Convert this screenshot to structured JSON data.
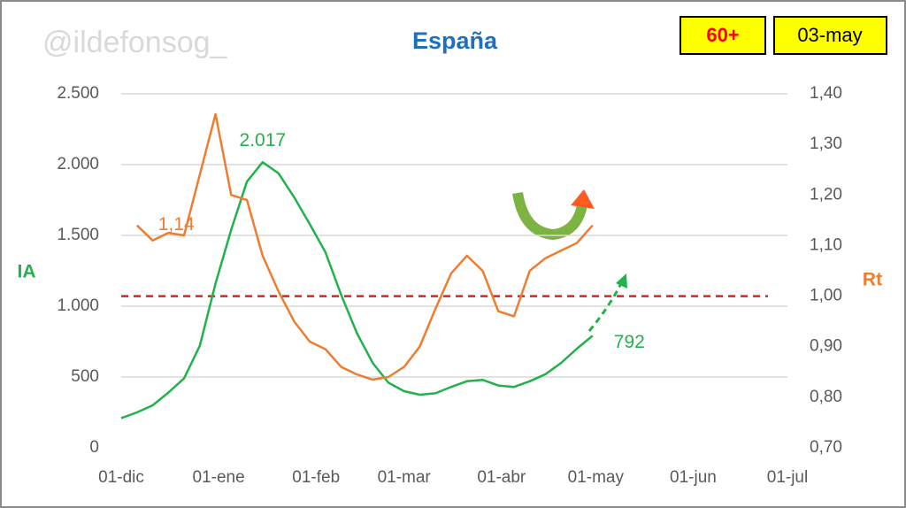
{
  "watermark": "@ildefonsog_",
  "badges": [
    "60+",
    "03-may"
  ],
  "chart_data": {
    "type": "line",
    "title": "España",
    "y_label": "IA",
    "y2_label": "Rt",
    "x": [
      0,
      5,
      10,
      15,
      20,
      25,
      30,
      35,
      40,
      45,
      50,
      55,
      60,
      65,
      70,
      75,
      80,
      85,
      90,
      95,
      100,
      105,
      110,
      115,
      120,
      125,
      130,
      135,
      140,
      145,
      150
    ],
    "xlim": [
      0,
      212
    ],
    "xticks": [
      {
        "value": 0,
        "label": "01-dic"
      },
      {
        "value": 31,
        "label": "01-ene"
      },
      {
        "value": 62,
        "label": "01-feb"
      },
      {
        "value": 90,
        "label": "01-mar"
      },
      {
        "value": 121,
        "label": "01-abr"
      },
      {
        "value": 151,
        "label": "01-may"
      },
      {
        "value": 182,
        "label": "01-jun"
      },
      {
        "value": 212,
        "label": "01-jul"
      }
    ],
    "ylim": [
      0,
      2500
    ],
    "yticks": [
      0,
      500,
      {
        "value": 1000,
        "label": "1.000"
      },
      {
        "value": 1500,
        "label": "1.500"
      },
      {
        "value": 2000,
        "label": "2.000"
      },
      {
        "value": 2500,
        "label": "2.500"
      }
    ],
    "y2lim": [
      0.7,
      1.4
    ],
    "y2ticks": [
      {
        "value": 0.7,
        "label": "0,70"
      },
      {
        "value": 0.8,
        "label": "0,80"
      },
      {
        "value": 0.9,
        "label": "0,90"
      },
      {
        "value": 1.0,
        "label": "1,00"
      },
      {
        "value": 1.1,
        "label": "1,10"
      },
      {
        "value": 1.2,
        "label": "1,20"
      },
      {
        "value": 1.3,
        "label": "1,30"
      },
      {
        "value": 1.4,
        "label": "1,40"
      }
    ],
    "grid": true,
    "series": [
      {
        "name": "IA",
        "color": "#22b14c",
        "values": [
          210,
          250,
          300,
          390,
          490,
          720,
          1160,
          1540,
          1880,
          2017,
          1940,
          1770,
          1580,
          1380,
          1080,
          810,
          600,
          460,
          400,
          375,
          385,
          430,
          470,
          480,
          440,
          430,
          470,
          520,
          600,
          700,
          792
        ]
      },
      {
        "name": "Rt",
        "color": "#ed7d31",
        "axis": "y2",
        "values": [
          null,
          1.14,
          1.11,
          1.125,
          1.12,
          1.24,
          1.36,
          1.2,
          1.19,
          1.08,
          1.01,
          0.95,
          0.91,
          0.895,
          0.86,
          0.845,
          0.835,
          0.84,
          0.86,
          0.9,
          0.975,
          1.045,
          1.08,
          1.05,
          0.97,
          0.96,
          1.05,
          1.075,
          1.09,
          1.105,
          1.14
        ]
      }
    ],
    "threshold": {
      "value": 1.0,
      "axis": "y2",
      "color": "#e02020"
    },
    "annotations": [
      {
        "series": 0,
        "value": 2017,
        "label": "2.017"
      },
      {
        "series": 0,
        "value": 792,
        "label": "792"
      },
      {
        "series": 1,
        "value": 1.14,
        "label": "1,14"
      }
    ]
  }
}
